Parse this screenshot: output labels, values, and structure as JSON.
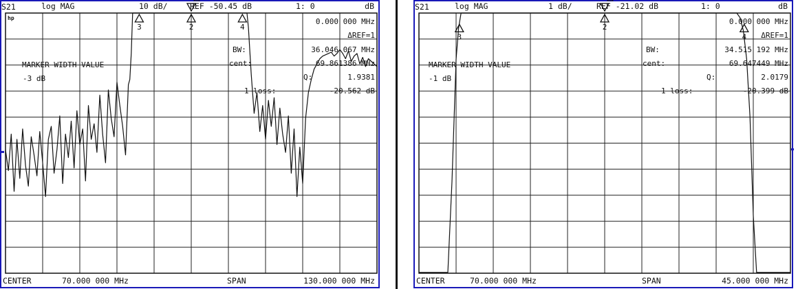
{
  "chart_data": [
    {
      "type": "line",
      "header": {
        "param": "S21",
        "format": "log MAG",
        "scale": "10 dB/",
        "ref": "REF -50.45 dB",
        "marker": "1: 0",
        "unit": "dB"
      },
      "logo": "hp",
      "marker_freq": "0.000 000 MHz",
      "delta_ref": "ΔREF=1",
      "bw_label": "BW:",
      "bw_value": "36.046 067 MHz",
      "cent_label": "cent:",
      "cent_value": "69.861386 MHz",
      "q_label": "Q:",
      "q_value": "1.9381",
      "loss_label": "1 loss:",
      "loss_value": "-20.562 dB",
      "mode_label": "MARKER WIDTH VALUE",
      "width_value": "-3 dB",
      "footer": {
        "center_label": "CENTER",
        "center_value": "70.000 000 MHz",
        "span_label": "SPAN",
        "span_value": "130.000 000 MHz"
      },
      "x_range_mhz": [
        5,
        135
      ],
      "ref_db": -50.45,
      "scale_db_per_div": 10,
      "grid": {
        "x_divisions": 10,
        "y_divisions": 10
      },
      "markers": [
        {
          "label": "1",
          "x": 70.0,
          "y": -20.562,
          "delta": true
        },
        {
          "label": "2",
          "x": 70.0,
          "y": -20.562
        },
        {
          "label": "3",
          "x": 51.8,
          "y": -23.6
        },
        {
          "label": "4",
          "x": 87.9,
          "y": -23.6
        }
      ],
      "series": [
        {
          "x": [
            5,
            6,
            7,
            8,
            9,
            10,
            11,
            12,
            13,
            14,
            15,
            16,
            17,
            18,
            19,
            20,
            21,
            22,
            23,
            24,
            25,
            26,
            27,
            28,
            29,
            30,
            31,
            32,
            33,
            34,
            35,
            36,
            37,
            38,
            39,
            40,
            41,
            42,
            43,
            44,
            45,
            46,
            47,
            48,
            48.5,
            49,
            49.5,
            50,
            50.5,
            51,
            51.5,
            52,
            53,
            55,
            60,
            65,
            70,
            75,
            80,
            85,
            86,
            87,
            87.5,
            88,
            88.5,
            89,
            89.5,
            90,
            91,
            92,
            93,
            94,
            95,
            96,
            97,
            98,
            99,
            100,
            101,
            102,
            103,
            104,
            105,
            106,
            107,
            108,
            109,
            110,
            111,
            112,
            113,
            114,
            115,
            116,
            117,
            118,
            119,
            120,
            121,
            122,
            123,
            124,
            125,
            126,
            127,
            128,
            129,
            130,
            131,
            132,
            133,
            134,
            135
          ],
          "values": [
            -103,
            -111,
            -97,
            -119,
            -99,
            -114,
            -95,
            -109,
            -117,
            -98,
            -105,
            -113,
            -96,
            -108,
            -121,
            -99,
            -94,
            -112,
            -103,
            -90,
            -116,
            -97,
            -106,
            -92,
            -110,
            -88,
            -101,
            -95,
            -115,
            -86,
            -99,
            -93,
            -104,
            -82,
            -97,
            -108,
            -80,
            -91,
            -98,
            -77,
            -86,
            -94,
            -105,
            -78,
            -76,
            -66,
            -48,
            -34,
            -27,
            -24,
            -23.2,
            -22.6,
            -21.7,
            -21,
            -20.7,
            -20.6,
            -20.56,
            -20.6,
            -20.7,
            -21,
            -21.6,
            -22.5,
            -23.2,
            -24.3,
            -27,
            -33,
            -44,
            -56,
            -74,
            -89,
            -81,
            -96,
            -86,
            -99,
            -84,
            -94,
            -83,
            -101,
            -87,
            -97,
            -104,
            -90,
            -112,
            -95,
            -121,
            -102,
            -116,
            -91,
            -81,
            -76,
            -72,
            -70,
            -68,
            -67,
            -66.5,
            -66,
            -65.5,
            -67,
            -66,
            -64.5,
            -66,
            -68,
            -65,
            -69,
            -67,
            -66,
            -70,
            -67.5,
            -71,
            -68,
            -69,
            -70,
            -71
          ]
        }
      ]
    },
    {
      "type": "line",
      "header": {
        "param": "S21",
        "format": "log MAG",
        "scale": "1 dB/",
        "ref": "REF -21.02 dB",
        "marker": "1: 0",
        "unit": "dB"
      },
      "marker_freq": "0.000 000 MHz",
      "delta_ref": "ΔREF=1",
      "bw_label": "BW:",
      "bw_value": "34.515 192 MHz",
      "cent_label": "cent:",
      "cent_value": "69.647449 MHz",
      "q_label": "Q:",
      "q_value": "2.0179",
      "loss_label": "1 loss:",
      "loss_value": "-20.399 dB",
      "mode_label": "MARKER WIDTH VALUE",
      "width_value": "-1 dB",
      "footer": {
        "center_label": "CENTER",
        "center_value": "70.000 000 MHz",
        "span_label": "SPAN",
        "span_value": "45.000 000 MHz"
      },
      "x_range_mhz": [
        47.5,
        92.5
      ],
      "ref_db": -21.02,
      "scale_db_per_div": 1,
      "grid": {
        "x_divisions": 10,
        "y_divisions": 10
      },
      "markers": [
        {
          "label": "1",
          "x": 70.0,
          "y": -20.399,
          "delta": true
        },
        {
          "label": "2",
          "x": 70.0,
          "y": -20.399
        },
        {
          "label": "3",
          "x": 52.4,
          "y": -21.4
        },
        {
          "label": "4",
          "x": 86.9,
          "y": -21.4
        }
      ],
      "series": [
        {
          "x": [
            47.5,
            48,
            48.5,
            49,
            49.5,
            50,
            50.5,
            51,
            51.5,
            52,
            52.3,
            52.6,
            53,
            53.5,
            54,
            54.5,
            55,
            55.5,
            56,
            56.5,
            57,
            57.5,
            58,
            58.5,
            59,
            59.5,
            60,
            60.5,
            61,
            61.5,
            62,
            62.5,
            63,
            63.5,
            64,
            64.5,
            65,
            65.5,
            66,
            66.5,
            67,
            67.5,
            68,
            68.5,
            69,
            69.5,
            70,
            70.5,
            71,
            71.5,
            72,
            72.5,
            73,
            73.5,
            74,
            74.5,
            75,
            75.5,
            76,
            76.5,
            77,
            77.5,
            78,
            78.5,
            79,
            79.5,
            80,
            80.5,
            81,
            81.5,
            82,
            82.5,
            83,
            83.5,
            84,
            84.5,
            85,
            85.5,
            86,
            86.4,
            86.8,
            87.2,
            87.6,
            88,
            88.4,
            88.8,
            89.2,
            89.6,
            90,
            91,
            92.5
          ],
          "values": [
            -30.99,
            -30.99,
            -30.99,
            -30.99,
            -30.99,
            -30.99,
            -30.99,
            -30.99,
            -27.5,
            -22.8,
            -21.6,
            -21.0,
            -20.92,
            -20.82,
            -20.76,
            -20.78,
            -20.69,
            -20.72,
            -20.64,
            -20.68,
            -20.6,
            -20.66,
            -20.56,
            -20.61,
            -20.52,
            -20.6,
            -20.5,
            -20.55,
            -20.47,
            -20.56,
            -20.44,
            -20.51,
            -20.46,
            -20.4,
            -20.49,
            -20.43,
            -20.38,
            -20.46,
            -20.41,
            -20.36,
            -20.44,
            -20.39,
            -20.35,
            -20.42,
            -20.37,
            -20.33,
            -20.4,
            -20.36,
            -20.38,
            -20.34,
            -20.41,
            -20.37,
            -20.43,
            -20.39,
            -20.45,
            -20.41,
            -20.47,
            -20.44,
            -20.5,
            -20.46,
            -20.53,
            -20.49,
            -20.56,
            -20.51,
            -20.6,
            -20.55,
            -20.63,
            -20.58,
            -20.67,
            -20.62,
            -20.71,
            -20.66,
            -20.76,
            -20.7,
            -20.82,
            -20.76,
            -20.88,
            -20.84,
            -20.98,
            -21.2,
            -21.7,
            -22.8,
            -25.0,
            -28.8,
            -30.99,
            -30.99,
            -30.99,
            -30.99,
            -30.99,
            -30.99,
            -30.99
          ]
        }
      ]
    }
  ]
}
